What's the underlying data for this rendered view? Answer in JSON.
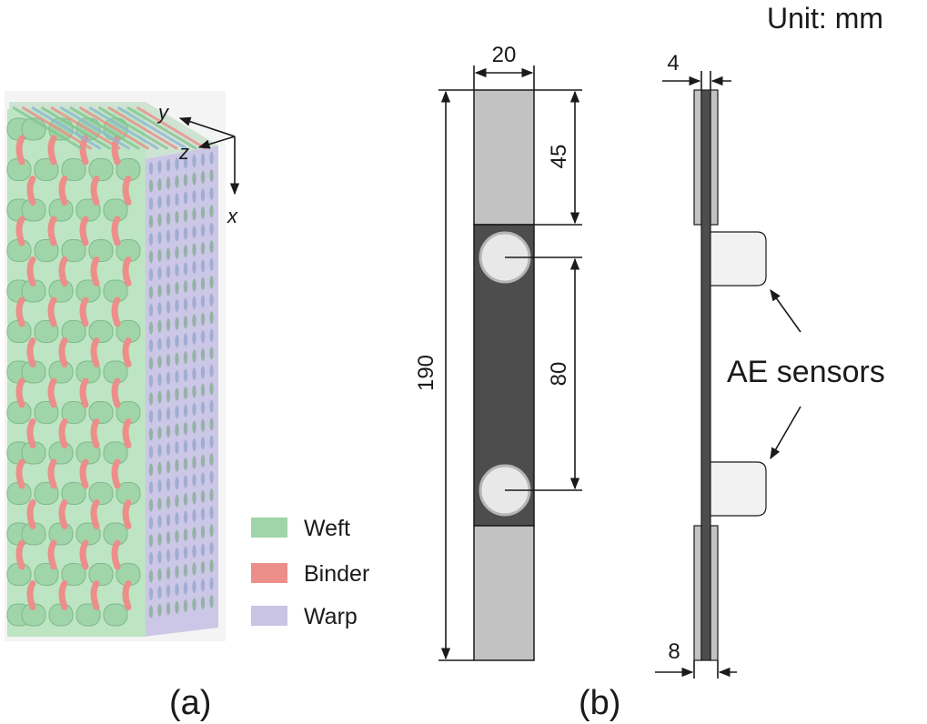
{
  "unit_label": "Unit: mm",
  "panel_a": {
    "caption": "(a)",
    "axes": {
      "x": "x",
      "y": "y",
      "z": "z"
    },
    "legend": [
      {
        "label": "Weft",
        "color": "#9fd5a9"
      },
      {
        "label": "Binder",
        "color": "#ec8e8a"
      },
      {
        "label": "Warp",
        "color": "#c9c4e4"
      }
    ]
  },
  "panel_b": {
    "caption": "(b)",
    "front_view": {
      "width_label": "20",
      "length_label": "190",
      "tab_label": "45",
      "sensor_spacing_label": "80"
    },
    "side_view": {
      "tab_thickness_label": "4",
      "total_thickness_label": "8",
      "sensors_label": "AE sensors"
    },
    "colors": {
      "tab": "#c2c2c2",
      "specimen": "#4d4d4d",
      "sensor": "#e8e8e8",
      "sensor_block": "#f2f2f2"
    }
  }
}
